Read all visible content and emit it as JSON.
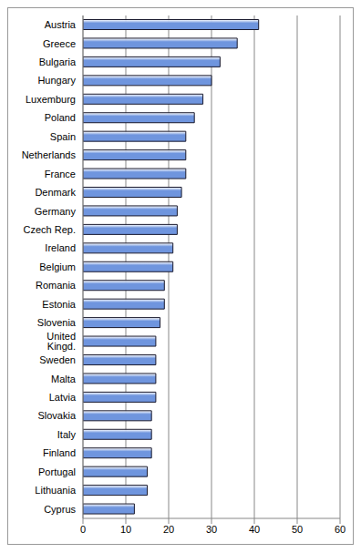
{
  "chart_data": {
    "type": "bar",
    "orientation": "horizontal",
    "categories": [
      "Austria",
      "Greece",
      "Bulgaria",
      "Hungary",
      "Luxemburg",
      "Poland",
      "Spain",
      "Netherlands",
      "France",
      "Denmark",
      "Germany",
      "Czech Rep.",
      "Ireland",
      "Belgium",
      "Romania",
      "Estonia",
      "Slovenia",
      "United Kingd.",
      "Sweden",
      "Malta",
      "Latvia",
      "Slovakia",
      "Italy",
      "Finland",
      "Portugal",
      "Lithuania",
      "Cyprus"
    ],
    "values": [
      41,
      36,
      32,
      30,
      28,
      26,
      24,
      24,
      24,
      23,
      22,
      22,
      21,
      21,
      19,
      19,
      18,
      17,
      17,
      17,
      17,
      16,
      16,
      16,
      15,
      15,
      12
    ],
    "color": "#6f95de",
    "xlim": [
      0,
      60
    ],
    "xticks": [
      0,
      10,
      20,
      30,
      40,
      50,
      60
    ],
    "grid": true
  }
}
